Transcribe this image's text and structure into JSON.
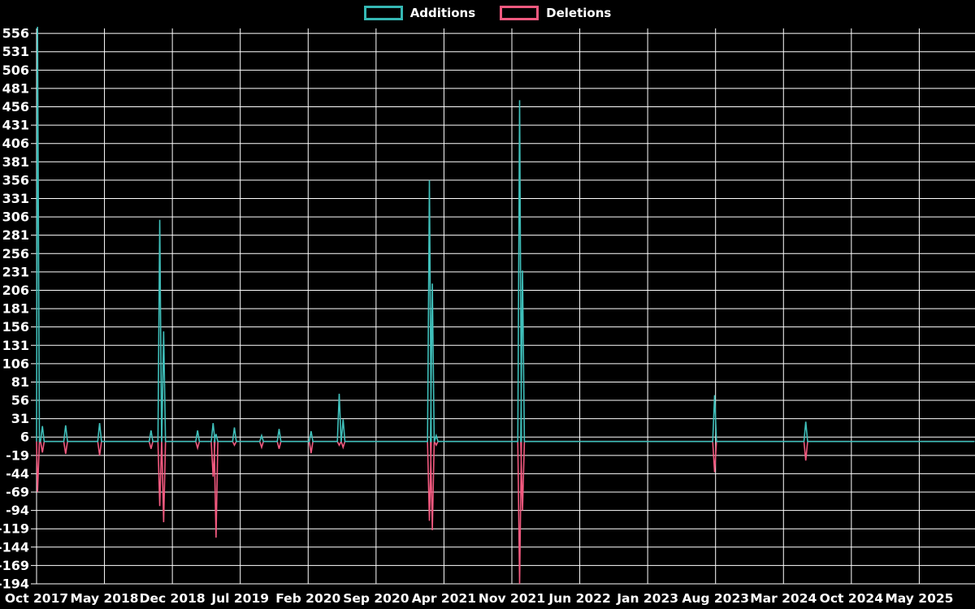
{
  "page": {
    "background": "#000000"
  },
  "legend": {
    "additions": "Additions",
    "deletions": "Deletions"
  },
  "colors": {
    "additions": "#3fbfba",
    "deletions": "#f2597f",
    "grid": "#ffffff",
    "text": "#ffffff",
    "background": "#000000"
  },
  "chart_data": {
    "type": "line",
    "title": "",
    "description": "Weekly code additions (positive spikes) and deletions (negative spikes) over time; flat at 0 between commit bursts",
    "grid": true,
    "legend_position": "top-center",
    "legend_entries": [
      "Additions",
      "Deletions"
    ],
    "x_axis": {
      "tick_labels": [
        "Oct 2017",
        "May 2018",
        "Dec 2018",
        "Jul 2019",
        "Feb 2020",
        "Sep 2020",
        "Apr 2021",
        "Nov 2021",
        "Jun 2022",
        "Jan 2023",
        "Aug 2023",
        "Mar 2024",
        "Oct 2024",
        "May 2025"
      ],
      "months_per_tick": 7,
      "total_months_shown": 96.7
    },
    "y_axis": {
      "min": -194,
      "max": 556,
      "step": 25,
      "tick_values": [
        556,
        531,
        506,
        481,
        456,
        431,
        406,
        381,
        356,
        331,
        306,
        281,
        256,
        231,
        206,
        181,
        156,
        131,
        106,
        81,
        56,
        31,
        6,
        -19,
        -44,
        -69,
        -94,
        -119,
        -144,
        -169,
        -194
      ]
    },
    "ylim": [
      -194,
      565
    ],
    "baseline_value": 0,
    "spike_half_width_months": 0.19,
    "events": [
      {
        "approx_date": "Oct 2017",
        "month_offset": 0.1,
        "additions": 565,
        "deletions": -69
      },
      {
        "approx_date": "Oct 2017",
        "month_offset": 0.6,
        "additions": 21,
        "deletions": -15
      },
      {
        "approx_date": "Jan 2018",
        "month_offset": 3.0,
        "additions": 22,
        "deletions": -17
      },
      {
        "approx_date": "Apr 2018",
        "month_offset": 6.5,
        "additions": 25,
        "deletions": -19
      },
      {
        "approx_date": "Sep 2018",
        "month_offset": 11.8,
        "additions": 15,
        "deletions": -10
      },
      {
        "approx_date": "Nov 2018",
        "month_offset": 12.7,
        "additions": 302,
        "deletions": -88
      },
      {
        "approx_date": "Nov 2018",
        "month_offset": 13.1,
        "additions": 150,
        "deletions": -110
      },
      {
        "approx_date": "Feb 2019",
        "month_offset": 16.6,
        "additions": 15,
        "deletions": -9
      },
      {
        "approx_date": "Apr 2019",
        "month_offset": 18.2,
        "additions": 25,
        "deletions": -48
      },
      {
        "approx_date": "Apr 2019",
        "month_offset": 18.5,
        "additions": 10,
        "deletions": -131
      },
      {
        "approx_date": "Jun 2019",
        "month_offset": 20.4,
        "additions": 19,
        "deletions": -5
      },
      {
        "approx_date": "Sep 2019",
        "month_offset": 23.2,
        "additions": 8,
        "deletions": -8
      },
      {
        "approx_date": "Nov 2019",
        "month_offset": 25.0,
        "additions": 17,
        "deletions": -10
      },
      {
        "approx_date": "Feb 2020",
        "month_offset": 28.3,
        "additions": 14,
        "deletions": -16
      },
      {
        "approx_date": "Apr 2020",
        "month_offset": 31.2,
        "additions": 65,
        "deletions": -5
      },
      {
        "approx_date": "May 2020",
        "month_offset": 31.6,
        "additions": 30,
        "deletions": -8
      },
      {
        "approx_date": "Feb 2021",
        "month_offset": 40.5,
        "additions": 356,
        "deletions": -108
      },
      {
        "approx_date": "Mar 2021",
        "month_offset": 40.8,
        "additions": 215,
        "deletions": -121
      },
      {
        "approx_date": "Mar 2021",
        "month_offset": 41.2,
        "additions": 8,
        "deletions": -5
      },
      {
        "approx_date": "Nov 2021",
        "month_offset": 49.8,
        "additions": 465,
        "deletions": -194
      },
      {
        "approx_date": "Dec 2021",
        "month_offset": 50.1,
        "additions": 233,
        "deletions": -94
      },
      {
        "approx_date": "Aug 2023",
        "month_offset": 69.9,
        "additions": 63,
        "deletions": -42
      },
      {
        "approx_date": "May 2024",
        "month_offset": 79.3,
        "additions": 27,
        "deletions": -26
      }
    ]
  }
}
